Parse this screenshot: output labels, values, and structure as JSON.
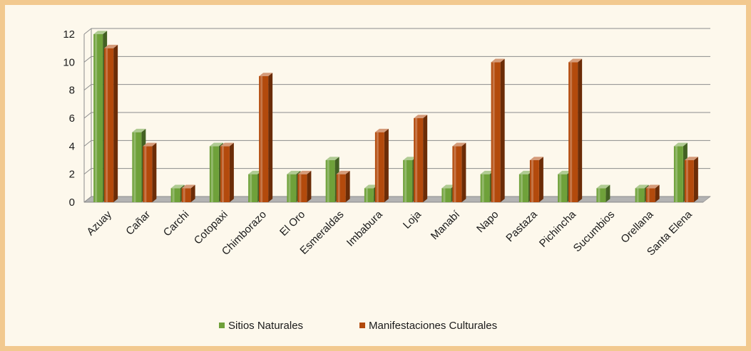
{
  "colors": {
    "frame": "#f2c98f",
    "background": "#fdf8ec",
    "sitios": "#6fa13a",
    "manifestaciones": "#b34a0c"
  },
  "chart_data": {
    "type": "bar",
    "style": "3d-column",
    "categories": [
      "Azuay",
      "Cañar",
      "Carchi",
      "Cotopaxi",
      "Chimborazo",
      "El Oro",
      "Esmeraldas",
      "Imbabura",
      "Loja",
      "Manabí",
      "Napo",
      "Pastaza",
      "Pichincha",
      "Sucumbios",
      "Orellana",
      "Santa Elena"
    ],
    "series": [
      {
        "name": "Sitios Naturales",
        "color": "#6fa13a",
        "values": [
          12,
          5,
          1,
          4,
          2,
          2,
          3,
          1,
          3,
          1,
          2,
          2,
          2,
          1,
          1,
          4
        ]
      },
      {
        "name": "Manifestaciones Culturales",
        "color": "#b34a0c",
        "values": [
          11,
          4,
          1,
          4,
          9,
          2,
          2,
          5,
          6,
          4,
          10,
          3,
          10,
          0,
          1,
          3
        ]
      }
    ],
    "ylim": [
      0,
      12
    ],
    "yticks": [
      "0",
      "2",
      "4",
      "6",
      "8",
      "10",
      "12"
    ],
    "grid": true,
    "legend": "bottom"
  }
}
